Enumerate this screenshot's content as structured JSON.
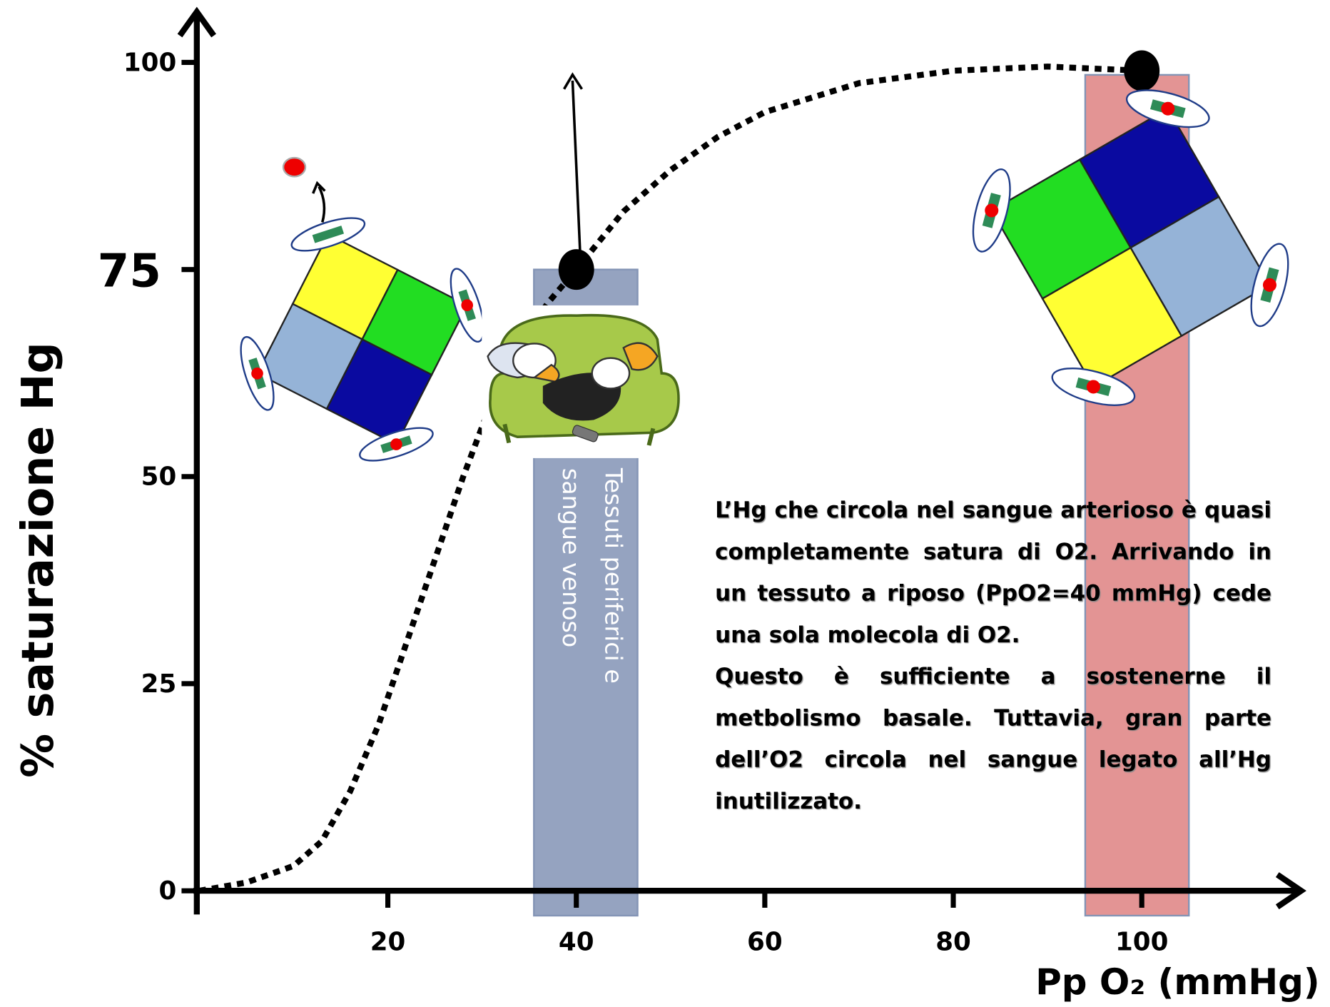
{
  "chart_data": {
    "type": "line",
    "x_label": "Pp O₂ (mmHg)",
    "y_label": "% saturazione Hg",
    "xlim": [
      0,
      117
    ],
    "ylim": [
      0,
      106
    ],
    "xticks": [
      20,
      40,
      60,
      80,
      100
    ],
    "yticks": [
      0,
      25,
      50,
      75,
      100
    ],
    "series": [
      {
        "color": "#000000",
        "x": [
          0,
          5,
          10,
          13,
          16,
          19,
          22,
          25,
          28,
          31,
          34,
          37,
          40,
          45,
          50,
          55,
          60,
          70,
          80,
          90,
          100
        ],
        "values": [
          0,
          1,
          3,
          6,
          12,
          20,
          30,
          40,
          50,
          59,
          66,
          71,
          75,
          82,
          87,
          91,
          94,
          97.5,
          99,
          99.5,
          99
        ]
      }
    ],
    "markers": {
      "color": "#000000",
      "x": [
        40,
        100
      ],
      "values": [
        75,
        99
      ]
    },
    "shaded_regions": [
      {
        "x": [
          35.5,
          46.5
        ],
        "y": [
          -3,
          75
        ],
        "color": "#95a3c0",
        "label_lines": [
          "Tessuti periferici e",
          "sangue venoso"
        ]
      },
      {
        "x": [
          94,
          105
        ],
        "y": [
          -3,
          98.5
        ],
        "color": "#e39494"
      }
    ],
    "annotation": [
      "L’Hg che circola nel sangue arterioso è quasi completamente satura di O2. Arrivando in un tessuto a riposo (PpO2=40 mmHg) cede una sola molecola di O2.",
      "Questo è sufficiente a sostenerne il metbolismo basale. Tuttavia, gran parte dell’O2 circola nel sangue legato all’Hg inutilizzato."
    ]
  }
}
